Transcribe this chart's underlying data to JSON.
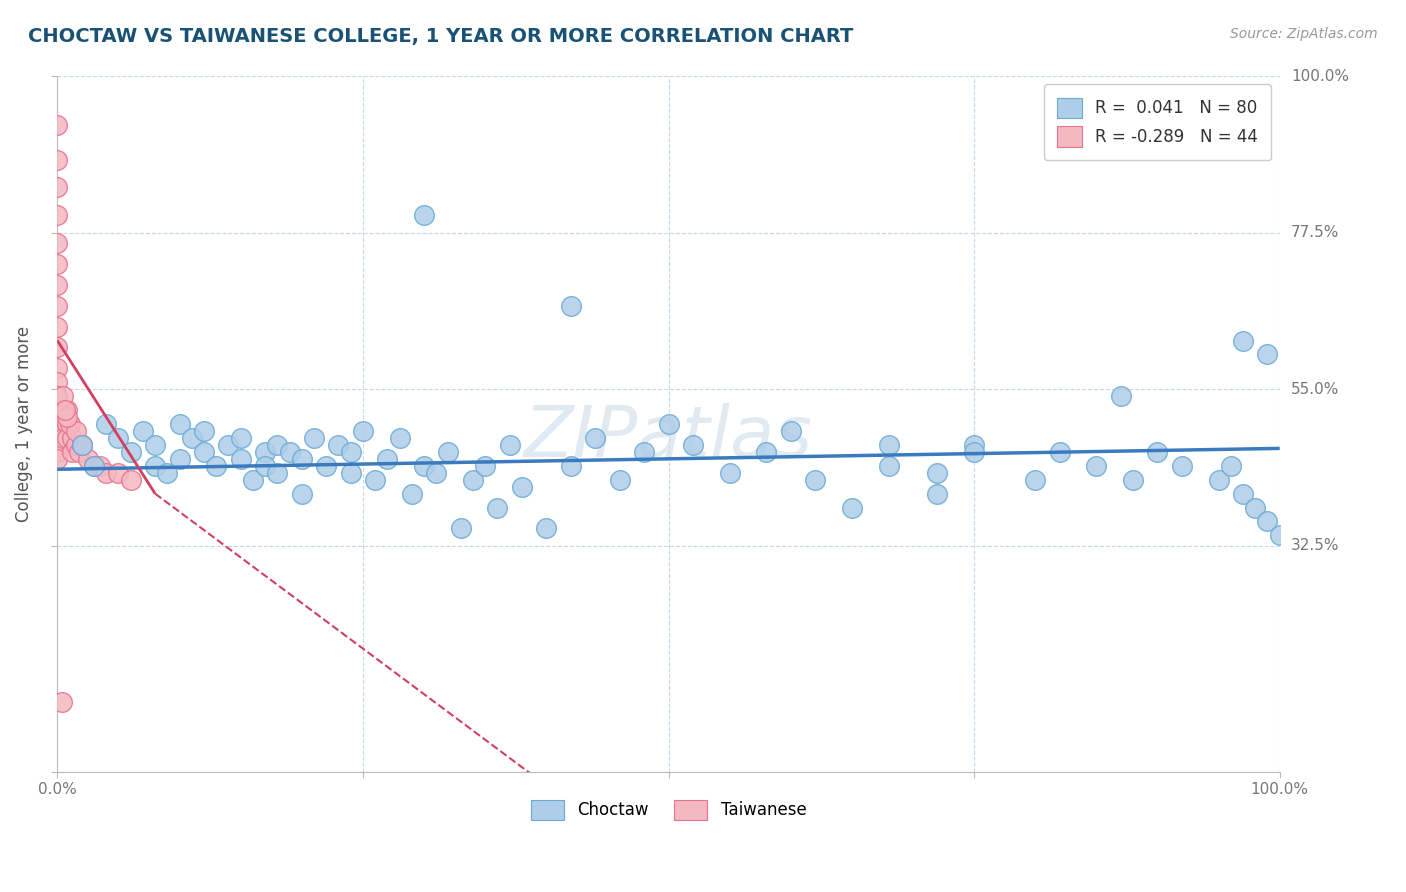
{
  "title": "CHOCTAW VS TAIWANESE COLLEGE, 1 YEAR OR MORE CORRELATION CHART",
  "source_text": "Source: ZipAtlas.com",
  "ylabel": "College, 1 year or more",
  "xlim": [
    0.0,
    1.0
  ],
  "ylim": [
    0.0,
    1.0
  ],
  "x_ticks": [
    0.0,
    0.25,
    0.5,
    0.75,
    1.0
  ],
  "x_tick_labels": [
    "0.0%",
    "",
    "",
    "",
    "100.0%"
  ],
  "y_ticks": [
    0.0,
    0.325,
    0.55,
    0.775,
    1.0
  ],
  "y_tick_labels_left": [
    "",
    "",
    "",
    "",
    ""
  ],
  "y_tick_labels_right": [
    "",
    "32.5%",
    "55.0%",
    "77.5%",
    "100.0%"
  ],
  "legend_entries": [
    {
      "label": "R =  0.041   N = 80",
      "color": "#aecde8"
    },
    {
      "label": "R = -0.289   N = 44",
      "color": "#f4b8c1"
    }
  ],
  "choctaw_color": "#aecde8",
  "choctaw_edge": "#6aaad4",
  "taiwanese_color": "#f4b8c1",
  "taiwanese_edge": "#e87090",
  "trend_choctaw_color": "#3a7abf",
  "trend_taiwanese_color": "#d04060",
  "background_color": "#ffffff",
  "grid_color": "#c8d8e8",
  "watermark_color": "#d0dce8",
  "choctaw_x": [
    0.02,
    0.03,
    0.04,
    0.05,
    0.06,
    0.07,
    0.08,
    0.08,
    0.09,
    0.1,
    0.1,
    0.11,
    0.12,
    0.12,
    0.13,
    0.14,
    0.15,
    0.15,
    0.16,
    0.17,
    0.17,
    0.18,
    0.18,
    0.19,
    0.2,
    0.2,
    0.21,
    0.22,
    0.23,
    0.24,
    0.24,
    0.25,
    0.26,
    0.27,
    0.28,
    0.29,
    0.3,
    0.31,
    0.32,
    0.33,
    0.34,
    0.35,
    0.36,
    0.37,
    0.38,
    0.4,
    0.42,
    0.44,
    0.46,
    0.48,
    0.5,
    0.52,
    0.55,
    0.58,
    0.6,
    0.62,
    0.65,
    0.68,
    0.72,
    0.75,
    0.3,
    0.42,
    0.97,
    0.99,
    0.87,
    0.68,
    0.72,
    0.75,
    0.8,
    0.82,
    0.85,
    0.88,
    0.9,
    0.92,
    0.95,
    0.96,
    0.97,
    0.98,
    0.99,
    1.0
  ],
  "choctaw_y": [
    0.47,
    0.44,
    0.5,
    0.48,
    0.46,
    0.49,
    0.44,
    0.47,
    0.43,
    0.5,
    0.45,
    0.48,
    0.46,
    0.49,
    0.44,
    0.47,
    0.45,
    0.48,
    0.42,
    0.46,
    0.44,
    0.47,
    0.43,
    0.46,
    0.4,
    0.45,
    0.48,
    0.44,
    0.47,
    0.43,
    0.46,
    0.49,
    0.42,
    0.45,
    0.48,
    0.4,
    0.44,
    0.43,
    0.46,
    0.35,
    0.42,
    0.44,
    0.38,
    0.47,
    0.41,
    0.35,
    0.44,
    0.48,
    0.42,
    0.46,
    0.5,
    0.47,
    0.43,
    0.46,
    0.49,
    0.42,
    0.38,
    0.44,
    0.4,
    0.47,
    0.8,
    0.67,
    0.62,
    0.6,
    0.54,
    0.47,
    0.43,
    0.46,
    0.42,
    0.46,
    0.44,
    0.42,
    0.46,
    0.44,
    0.42,
    0.44,
    0.4,
    0.38,
    0.36,
    0.34
  ],
  "taiwanese_x": [
    0.0,
    0.0,
    0.0,
    0.0,
    0.0,
    0.0,
    0.0,
    0.0,
    0.0,
    0.0,
    0.0,
    0.0,
    0.0,
    0.0,
    0.0,
    0.0,
    0.0,
    0.0,
    0.0,
    0.0,
    0.005,
    0.005,
    0.005,
    0.008,
    0.008,
    0.012,
    0.012,
    0.015,
    0.018,
    0.02,
    0.025,
    0.03,
    0.035,
    0.04,
    0.05,
    0.06,
    0.008,
    0.01,
    0.015,
    0.02,
    0.005,
    0.008,
    0.006,
    0.004
  ],
  "taiwanese_y": [
    0.93,
    0.88,
    0.84,
    0.8,
    0.76,
    0.73,
    0.7,
    0.67,
    0.64,
    0.61,
    0.58,
    0.56,
    0.54,
    0.52,
    0.5,
    0.48,
    0.47,
    0.46,
    0.45,
    0.54,
    0.52,
    0.5,
    0.48,
    0.5,
    0.48,
    0.46,
    0.48,
    0.47,
    0.46,
    0.47,
    0.45,
    0.44,
    0.44,
    0.43,
    0.43,
    0.42,
    0.52,
    0.5,
    0.49,
    0.47,
    0.54,
    0.51,
    0.52,
    0.1
  ],
  "trend_choctaw_x0": 0.0,
  "trend_choctaw_x1": 1.0,
  "trend_choctaw_y0": 0.435,
  "trend_choctaw_y1": 0.465,
  "trend_taiwanese_x0": 0.0,
  "trend_taiwanese_x1": 0.08,
  "trend_taiwanese_y0": 0.62,
  "trend_taiwanese_y1": 0.4
}
